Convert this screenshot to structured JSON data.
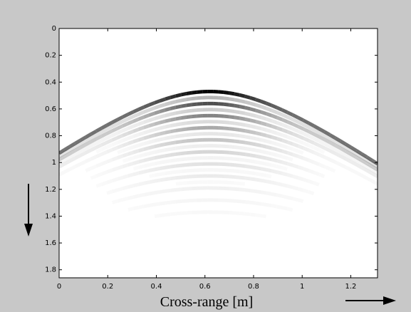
{
  "chart_data": {
    "type": "image",
    "xlabel": "Cross-range [m]",
    "xlim": [
      0,
      1.31
    ],
    "ylim": [
      0,
      1.86
    ],
    "y_reversed": true,
    "xticks": [
      0,
      0.2,
      0.4,
      0.6,
      0.8,
      1,
      1.2
    ],
    "yticks": [
      0,
      0.2,
      0.4,
      0.6,
      0.8,
      1,
      1.2,
      1.4,
      1.6,
      1.8
    ],
    "colormap": "gray"
  }
}
